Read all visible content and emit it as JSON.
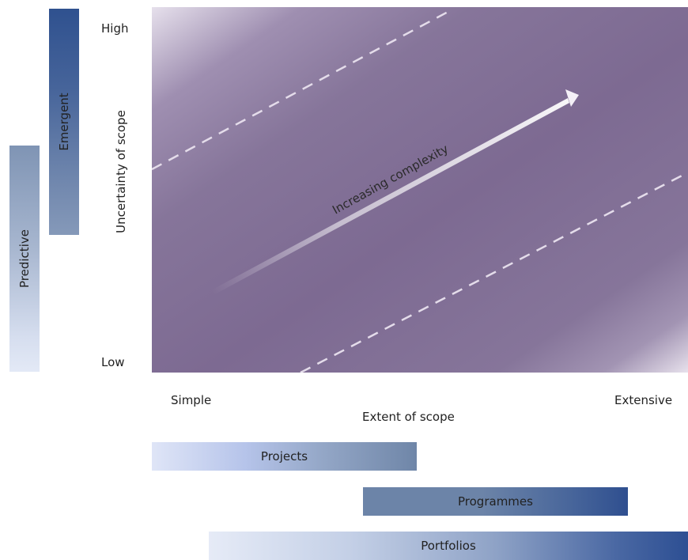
{
  "axes": {
    "y_label": "Uncertainty of scope",
    "y_high": "High",
    "y_low": "Low",
    "x_label": "Extent of scope",
    "x_left": "Simple",
    "x_right": "Extensive"
  },
  "arrow_label": "Increasing complexity",
  "approach_bars": {
    "emergent": "Emergent",
    "predictive": "Predictive"
  },
  "scope_bars": {
    "projects": "Projects",
    "programmes": "Programmes",
    "portfolios": "Portfolios"
  },
  "colors": {
    "plot_fill": "#7d6a92",
    "bar_dark_blue": "#2f518f",
    "bar_light_blue": "#dfe5f7"
  }
}
